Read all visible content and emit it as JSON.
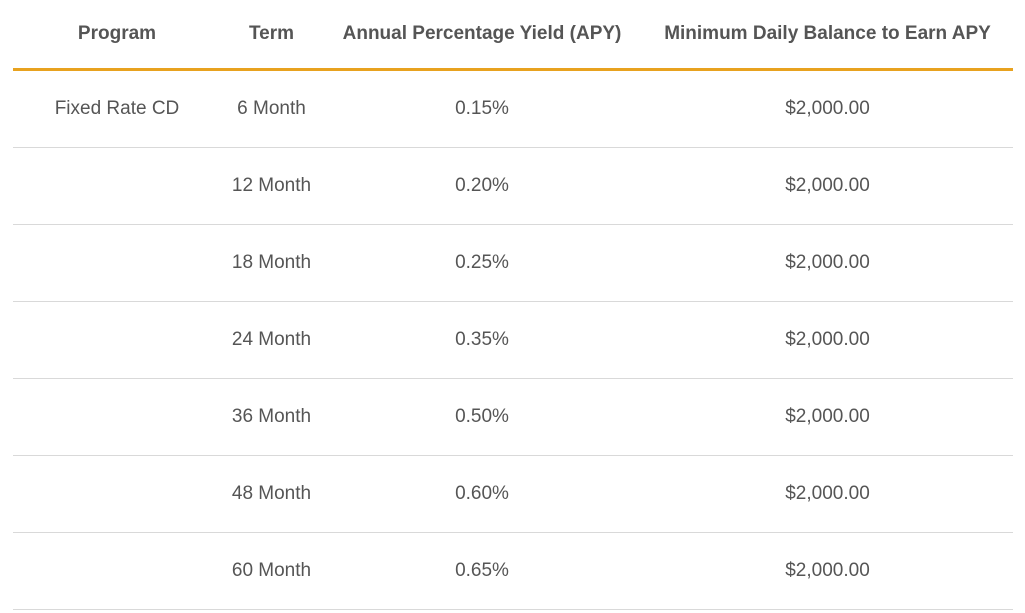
{
  "table": {
    "headers": {
      "program": "Program",
      "term": "Term",
      "apy": "Annual Percentage Yield (APY)",
      "min_balance": "Minimum Daily Balance to Earn APY"
    },
    "rows": [
      {
        "program": "Fixed Rate CD",
        "term": "6 Month",
        "apy": "0.15%",
        "min_balance": "$2,000.00"
      },
      {
        "program": "",
        "term": "12 Month",
        "apy": "0.20%",
        "min_balance": "$2,000.00"
      },
      {
        "program": "",
        "term": "18 Month",
        "apy": "0.25%",
        "min_balance": "$2,000.00"
      },
      {
        "program": "",
        "term": "24 Month",
        "apy": "0.35%",
        "min_balance": "$2,000.00"
      },
      {
        "program": "",
        "term": "36 Month",
        "apy": "0.50%",
        "min_balance": "$2,000.00"
      },
      {
        "program": "",
        "term": "48 Month",
        "apy": "0.60%",
        "min_balance": "$2,000.00"
      },
      {
        "program": "",
        "term": "60 Month",
        "apy": "0.65%",
        "min_balance": "$2,000.00"
      }
    ]
  },
  "colors": {
    "header_rule": "#e8a21f",
    "row_divider": "#d9d9d9",
    "text": "#555555"
  }
}
